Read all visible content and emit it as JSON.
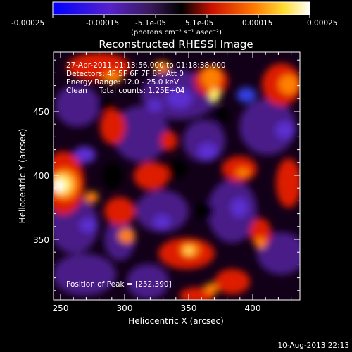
{
  "colorbar": {
    "tick_labels": [
      "-0.00025",
      "-0.00015",
      "-5.1e-05",
      "5.1e-05",
      "0.00015",
      "0.00025"
    ],
    "unit_label": "(photons cm⁻² s⁻¹ asec⁻²)",
    "colors": [
      "#0000ff",
      "#7b3dbb",
      "#000000",
      "#ff2200",
      "#ff9900",
      "#ffffff"
    ]
  },
  "title": "Reconstructed RHESSI Image",
  "annotations": {
    "time_range": "27-Apr-2011 01:13:56.000 to 01:18:38.000",
    "detectors": "Detectors: 4F 5F 6F 7F 8F, Att 0",
    "energy_range": "Energy Range: 12.0 - 25.0 keV",
    "clean_counts": "Clean     Total counts: 1.25E+04",
    "peak_position": "Position of Peak = [252,390]"
  },
  "axes": {
    "xlabel": "Heliocentric X (arcsec)",
    "ylabel": "Heliocentric Y (arcsec)",
    "x_ticks": [
      "250",
      "300",
      "350",
      "400"
    ],
    "y_ticks": [
      "450",
      "400",
      "350"
    ]
  },
  "footer_timestamp": "10-Aug-2013 22:13"
}
